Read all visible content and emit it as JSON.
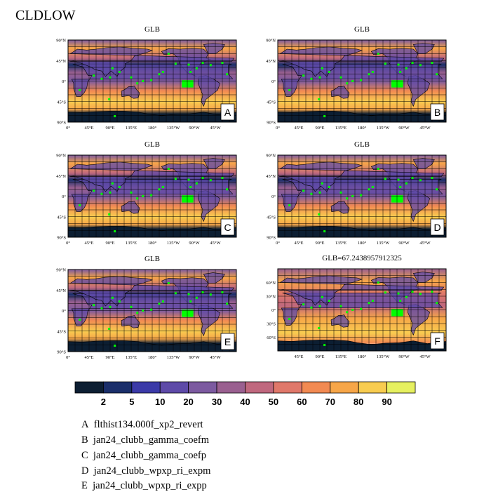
{
  "title": "CLDLOW",
  "panel_ytick_labels": [
    "90°N",
    "45°N",
    "0°",
    "45°S",
    "90°S"
  ],
  "panel_xtick_labels": [
    "0°",
    "45°E",
    "90°E",
    "135°E",
    "180°",
    "135°W",
    "90°W",
    "45°W"
  ],
  "panel_f_ytick_labels": [
    "60°N",
    "30°N",
    "0°",
    "30°S",
    "60°S"
  ],
  "panel_f_xtick_labels": [
    "45°E",
    "90°E",
    "135°E",
    "180°",
    "135°W",
    "90°W",
    "45°W"
  ],
  "colors": {
    "bins": [
      "#0c1e32",
      "#1a2e6a",
      "#3b3aa8",
      "#5e4aa8",
      "#7c5aa0",
      "#9a6090",
      "#c0687e",
      "#e0786a",
      "#f28a52",
      "#f7a648",
      "#f8cc50",
      "#e6f060"
    ],
    "station": "#00ff00",
    "land_outline": "#000000",
    "grid": "#000000"
  },
  "chart_data": {
    "type": "heatmap",
    "title": "CLDLOW",
    "colorbar": {
      "levels": [
        2,
        5,
        10,
        20,
        30,
        40,
        50,
        60,
        70,
        80,
        90
      ],
      "bin_count": 12
    },
    "panels": [
      {
        "label": "A",
        "title": "GLB",
        "xlim": [
          0,
          360
        ],
        "ylim": [
          -90,
          90
        ]
      },
      {
        "label": "B",
        "title": "GLB",
        "xlim": [
          0,
          360
        ],
        "ylim": [
          -90,
          90
        ]
      },
      {
        "label": "C",
        "title": "GLB",
        "xlim": [
          0,
          360
        ],
        "ylim": [
          -90,
          90
        ]
      },
      {
        "label": "D",
        "title": "GLB",
        "xlim": [
          0,
          360
        ],
        "ylim": [
          -90,
          90
        ]
      },
      {
        "label": "E",
        "title": "GLB",
        "xlim": [
          0,
          360
        ],
        "ylim": [
          -90,
          90
        ]
      },
      {
        "label": "F",
        "title": "GLB=67.2438957912325",
        "xlim": [
          0,
          360
        ],
        "ylim": [
          -90,
          90
        ]
      }
    ],
    "legend": [
      {
        "label": "A",
        "name": "flthist134.000f_xp2_revert"
      },
      {
        "label": "B",
        "name": "jan24_clubb_gamma_coefm"
      },
      {
        "label": "C",
        "name": "jan24_clubb_gamma_coefp"
      },
      {
        "label": "D",
        "name": "jan24_clubb_wpxp_ri_expm"
      },
      {
        "label": "E",
        "name": "jan24_clubb_wpxp_ri_expp"
      }
    ],
    "stations": [
      {
        "lon": 55,
        "lat": 12
      },
      {
        "lon": 72,
        "lat": 5
      },
      {
        "lon": 90,
        "lat": 8
      },
      {
        "lon": 95,
        "lat": 28
      },
      {
        "lon": 110,
        "lat": 20
      },
      {
        "lon": 135,
        "lat": 8
      },
      {
        "lon": 148,
        "lat": -5
      },
      {
        "lon": 160,
        "lat": 0
      },
      {
        "lon": 178,
        "lat": 2
      },
      {
        "lon": 195,
        "lat": 15
      },
      {
        "lon": 203,
        "lat": 20
      },
      {
        "lon": 215,
        "lat": 60
      },
      {
        "lon": 230,
        "lat": 38
      },
      {
        "lon": 258,
        "lat": 36
      },
      {
        "lon": 262,
        "lat": 20
      },
      {
        "lon": 275,
        "lat": 28
      },
      {
        "lon": 288,
        "lat": 40
      },
      {
        "lon": 305,
        "lat": 35
      },
      {
        "lon": 330,
        "lat": 40
      },
      {
        "lon": 25,
        "lat": -20
      },
      {
        "lon": 88,
        "lat": -40
      },
      {
        "lon": 100,
        "lat": -77
      },
      {
        "lon": 250,
        "lat": -10
      },
      {
        "lon": 340,
        "lat": 15
      }
    ]
  }
}
